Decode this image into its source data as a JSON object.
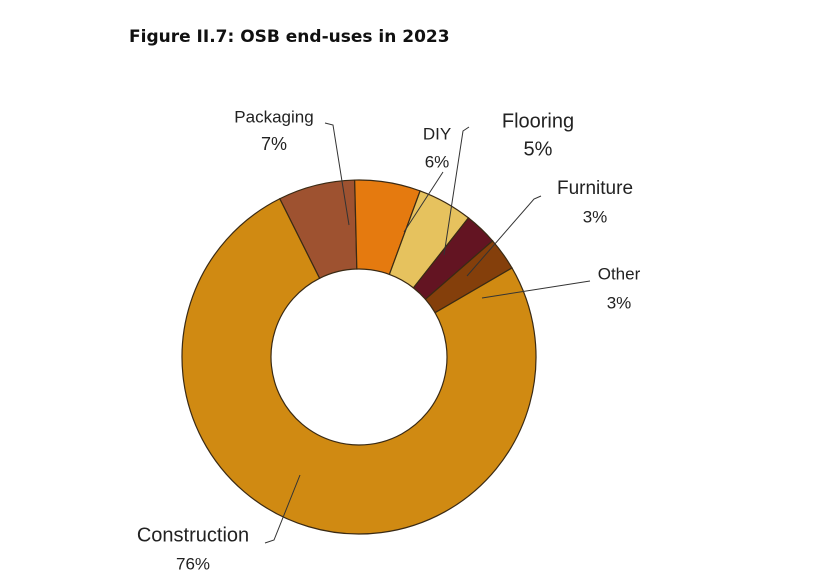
{
  "title": "Figure II.7: OSB end-uses in 2023",
  "chart_data": {
    "type": "pie",
    "donut": true,
    "title": "Figure II.7: OSB end-uses in 2023",
    "slices": [
      {
        "name": "Construction",
        "value": 76,
        "label": "76%",
        "color": "#D08A12"
      },
      {
        "name": "Packaging",
        "value": 7,
        "label": "7%",
        "color": "#9E5230"
      },
      {
        "name": "DIY",
        "value": 6,
        "label": "6%",
        "color": "#E57A0F"
      },
      {
        "name": "Flooring",
        "value": 5,
        "label": "5%",
        "color": "#E6C25E"
      },
      {
        "name": "Furniture",
        "value": 3,
        "label": "3%",
        "color": "#631422"
      },
      {
        "name": "Other",
        "value": 3,
        "label": "3%",
        "color": "#843F0B"
      }
    ]
  }
}
